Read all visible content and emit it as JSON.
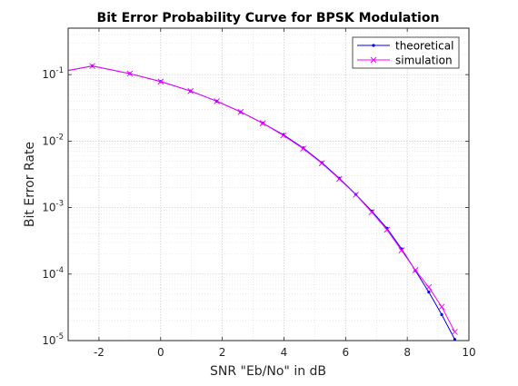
{
  "chart_data": {
    "type": "line",
    "title": "Bit Error Probability Curve for BPSK Modulation",
    "xlabel": "SNR \"Eb/No\" in dB",
    "ylabel": "Bit Error Rate",
    "xlim": [
      -3,
      10
    ],
    "ylim": [
      1e-05,
      0.5
    ],
    "y_scale": "log",
    "x_ticks": [
      -2,
      0,
      2,
      4,
      6,
      8,
      10
    ],
    "x_tick_labels": [
      "-2",
      "0",
      "2",
      "4",
      "6",
      "8",
      "10"
    ],
    "y_ticks": [
      1e-05,
      0.0001,
      0.001,
      0.01,
      0.1
    ],
    "y_tick_labels": [
      {
        "base": "10",
        "exp": "-5"
      },
      {
        "base": "10",
        "exp": "-4"
      },
      {
        "base": "10",
        "exp": "-3"
      },
      {
        "base": "10",
        "exp": "-2"
      },
      {
        "base": "10",
        "exp": "-1"
      }
    ],
    "grid": true,
    "minor_grid": true,
    "legend_position": "top-right",
    "series": [
      {
        "name": "theoretical",
        "color": "#0000ff",
        "marker": "dot",
        "x": [
          -2.218,
          -1.0,
          0.0,
          0.969,
          1.823,
          2.596,
          3.313,
          3.979,
          4.625,
          5.227,
          5.794,
          6.331,
          6.847,
          7.339,
          7.813,
          8.262,
          8.697,
          9.117,
          9.542
        ],
        "y": [
          0.1348,
          0.1036,
          0.0787,
          0.0567,
          0.0398,
          0.0275,
          0.0186,
          0.0125,
          0.0079,
          0.00475,
          0.00277,
          0.00158,
          0.00089,
          0.00049,
          0.00024,
          0.000113,
          5.38e-05,
          2.46e-05,
          1.04e-05
        ]
      },
      {
        "name": "simulation",
        "color": "#ff00ff",
        "marker": "x",
        "x": [
          -2.218,
          -1.0,
          0.0,
          0.969,
          1.823,
          2.596,
          3.313,
          3.979,
          4.625,
          5.227,
          5.794,
          6.331,
          6.847,
          7.339,
          7.813,
          8.262,
          8.697,
          9.117,
          9.542
        ],
        "y": [
          0.1348,
          0.1036,
          0.0787,
          0.0567,
          0.0398,
          0.0275,
          0.0186,
          0.0122,
          0.0077,
          0.00465,
          0.0027,
          0.00156,
          0.000855,
          0.000465,
          0.000228,
          0.000115,
          6.36e-05,
          3.22e-05,
          1.35e-05
        ]
      }
    ]
  }
}
